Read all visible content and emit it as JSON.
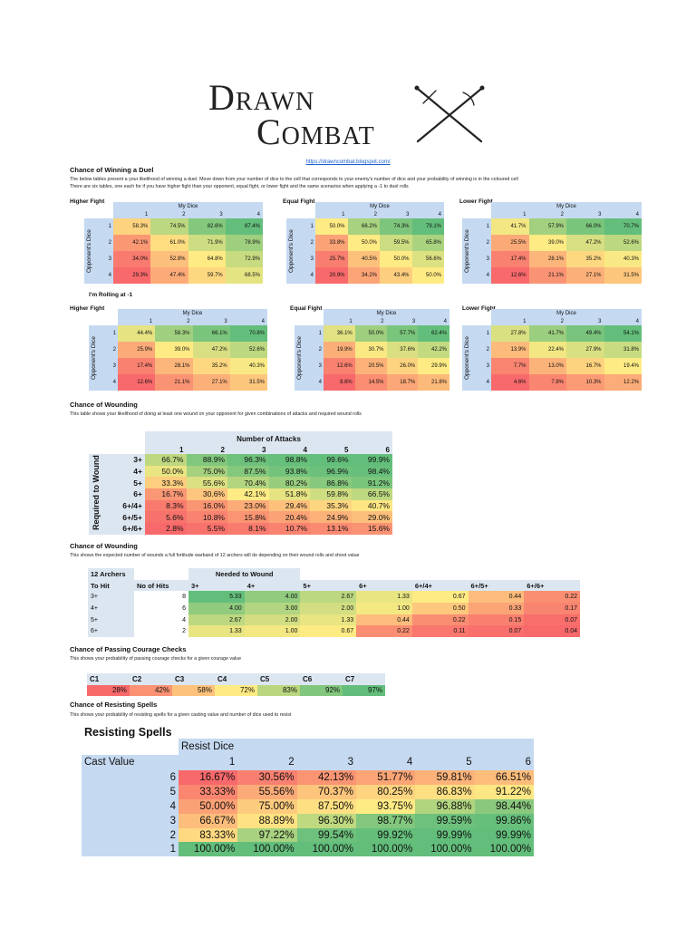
{
  "logo": {
    "line1": "Drawn",
    "line2": "Combat",
    "icon": "crossed-swords-icon"
  },
  "url": "https://drawncombat.blogspot.com/",
  "duel": {
    "title": "Chance of Winning a Duel",
    "desc1": "The below tables present a your likelihood of winning a duel. Move down from your number of dice to the cell that corresponds to your enemy's number of dice and your probability of winning is in the coloured cell",
    "desc2": "There are six tables, one each for if you have higher fight than your opponent, equal fight, or lower fight and the same scenarios when applying a -1 to duel rolls",
    "minus_label": "I'm Rolling at -1",
    "col_header": "My Dice",
    "row_header": "Opponent's Dice",
    "dice": [
      "1",
      "2",
      "3",
      "4"
    ],
    "tables": [
      {
        "label": "Higher Fight",
        "rows": [
          [
            "58.3%",
            "74.5%",
            "82.6%",
            "87.4%"
          ],
          [
            "42.1%",
            "61.0%",
            "71.9%",
            "78.9%"
          ],
          [
            "34.0%",
            "52.8%",
            "64.8%",
            "72.9%"
          ],
          [
            "29.3%",
            "47.4%",
            "59.7%",
            "68.5%"
          ]
        ]
      },
      {
        "label": "Equal Fight",
        "rows": [
          [
            "50.0%",
            "66.2%",
            "74.3%",
            "79.1%"
          ],
          [
            "33.8%",
            "50.0%",
            "59.5%",
            "65.8%"
          ],
          [
            "25.7%",
            "40.5%",
            "50.0%",
            "56.6%"
          ],
          [
            "20.9%",
            "34.2%",
            "43.4%",
            "50.0%"
          ]
        ]
      },
      {
        "label": "Lower Fight",
        "rows": [
          [
            "41.7%",
            "57.9%",
            "66.0%",
            "70.7%"
          ],
          [
            "25.5%",
            "39.0%",
            "47.2%",
            "52.6%"
          ],
          [
            "17.4%",
            "28.1%",
            "35.2%",
            "40.3%"
          ],
          [
            "12.6%",
            "21.1%",
            "27.1%",
            "31.5%"
          ]
        ]
      },
      {
        "label": "Higher Fight",
        "rows": [
          [
            "44.4%",
            "58.3%",
            "66.1%",
            "70.8%"
          ],
          [
            "25.9%",
            "39.0%",
            "47.2%",
            "52.6%"
          ],
          [
            "17.4%",
            "28.1%",
            "35.2%",
            "40.3%"
          ],
          [
            "12.6%",
            "21.1%",
            "27.1%",
            "31.5%"
          ]
        ]
      },
      {
        "label": "Equal Fight",
        "rows": [
          [
            "36.1%",
            "50.0%",
            "57.7%",
            "62.4%"
          ],
          [
            "19.9%",
            "30.7%",
            "37.6%",
            "42.2%"
          ],
          [
            "12.6%",
            "20.5%",
            "26.0%",
            "29.9%"
          ],
          [
            "8.6%",
            "14.5%",
            "18.7%",
            "21.8%"
          ]
        ]
      },
      {
        "label": "Lower Fight",
        "rows": [
          [
            "27.8%",
            "41.7%",
            "49.4%",
            "54.1%"
          ],
          [
            "13.9%",
            "22.4%",
            "27.9%",
            "31.8%"
          ],
          [
            "7.7%",
            "13.0%",
            "16.7%",
            "19.4%"
          ],
          [
            "4.6%",
            "7.8%",
            "10.3%",
            "12.2%"
          ]
        ]
      }
    ]
  },
  "wounding": {
    "title": "Chance of Wounding",
    "desc": "This table shows your likelihood of doing at least one wound on your opponent for given combinations of attacks and required wound rolls",
    "col_header": "Number of Attacks",
    "row_header": "Required to Wound",
    "cols": [
      "1",
      "2",
      "3",
      "4",
      "5",
      "6"
    ],
    "rows": [
      {
        "label": "3+",
        "values": [
          "66.7%",
          "88.9%",
          "96.3%",
          "98.8%",
          "99.6%",
          "99.9%"
        ]
      },
      {
        "label": "4+",
        "values": [
          "50.0%",
          "75.0%",
          "87.5%",
          "93.8%",
          "96.9%",
          "98.4%"
        ]
      },
      {
        "label": "5+",
        "values": [
          "33.3%",
          "55.6%",
          "70.4%",
          "80.2%",
          "86.8%",
          "91.2%"
        ]
      },
      {
        "label": "6+",
        "values": [
          "16.7%",
          "30.6%",
          "42.1%",
          "51.8%",
          "59.8%",
          "66.5%"
        ]
      },
      {
        "label": "6+/4+",
        "values": [
          "8.3%",
          "16.0%",
          "23.0%",
          "29.4%",
          "35.3%",
          "40.7%"
        ]
      },
      {
        "label": "6+/5+",
        "values": [
          "5.6%",
          "10.8%",
          "15.8%",
          "20.4%",
          "24.9%",
          "29.0%"
        ]
      },
      {
        "label": "6+/6+",
        "values": [
          "2.8%",
          "5.5%",
          "8.1%",
          "10.7%",
          "13.1%",
          "15.6%"
        ]
      }
    ]
  },
  "archers": {
    "title": "Chance of Wounding",
    "desc": "This shows the expected number of wounds a full fortitude warband of 12 archers will do depending on their wound rolls and shoot value",
    "corner": "12 Archers",
    "group_header": "Needed to Wound",
    "to_hit": "To Hit",
    "no_hits": "No of Hits",
    "cols": [
      "3+",
      "4+",
      "5+",
      "6+",
      "6+/4+",
      "6+/5+",
      "6+/6+"
    ],
    "rows": [
      {
        "to_hit": "3+",
        "hits": "8",
        "values": [
          "5.33",
          "4.00",
          "2.67",
          "1.33",
          "0.67",
          "0.44",
          "0.22"
        ]
      },
      {
        "to_hit": "4+",
        "hits": "6",
        "values": [
          "4.00",
          "3.00",
          "2.00",
          "1.00",
          "0.50",
          "0.33",
          "0.17"
        ]
      },
      {
        "to_hit": "5+",
        "hits": "4",
        "values": [
          "2.67",
          "2.00",
          "1.33",
          "0.44",
          "0.22",
          "0.15",
          "0.07"
        ]
      },
      {
        "to_hit": "6+",
        "hits": "2",
        "values": [
          "1.33",
          "1.00",
          "0.67",
          "0.22",
          "0.11",
          "0.07",
          "0.04"
        ]
      }
    ]
  },
  "courage": {
    "title": "Chance of Passing Courage Checks",
    "desc": "This shows your probability of passing courage checks for a given courage value",
    "cols": [
      "C1",
      "C2",
      "C3",
      "C4",
      "C5",
      "C6",
      "C7"
    ],
    "values": [
      "28%",
      "42%",
      "58%",
      "72%",
      "83%",
      "92%",
      "97%"
    ]
  },
  "spells": {
    "title": "Chance of Resisting Spells",
    "desc": "This shows your probability of resisting spells for a given casting value and number of dice used to resist",
    "table_title": "Resisting Spells",
    "col_header": "Resist Dice",
    "row_header": "Cast Value",
    "cols": [
      "1",
      "2",
      "3",
      "4",
      "5",
      "6"
    ],
    "rows": [
      {
        "label": "6",
        "values": [
          "16.67%",
          "30.56%",
          "42.13%",
          "51.77%",
          "59.81%",
          "66.51%"
        ]
      },
      {
        "label": "5",
        "values": [
          "33.33%",
          "55.56%",
          "70.37%",
          "80.25%",
          "86.83%",
          "91.22%"
        ]
      },
      {
        "label": "4",
        "values": [
          "50.00%",
          "75.00%",
          "87.50%",
          "93.75%",
          "96.88%",
          "98.44%"
        ]
      },
      {
        "label": "3",
        "values": [
          "66.67%",
          "88.89%",
          "96.30%",
          "98.77%",
          "99.59%",
          "99.86%"
        ]
      },
      {
        "label": "2",
        "values": [
          "83.33%",
          "97.22%",
          "99.54%",
          "99.92%",
          "99.99%",
          "99.99%"
        ]
      },
      {
        "label": "1",
        "values": [
          "100.00%",
          "100.00%",
          "100.00%",
          "100.00%",
          "100.00%",
          "100.00%"
        ]
      }
    ]
  },
  "colors": {
    "low": "#f8696b",
    "mid": "#ffeb84",
    "high": "#63be7b",
    "header": "#c5d9f1"
  }
}
